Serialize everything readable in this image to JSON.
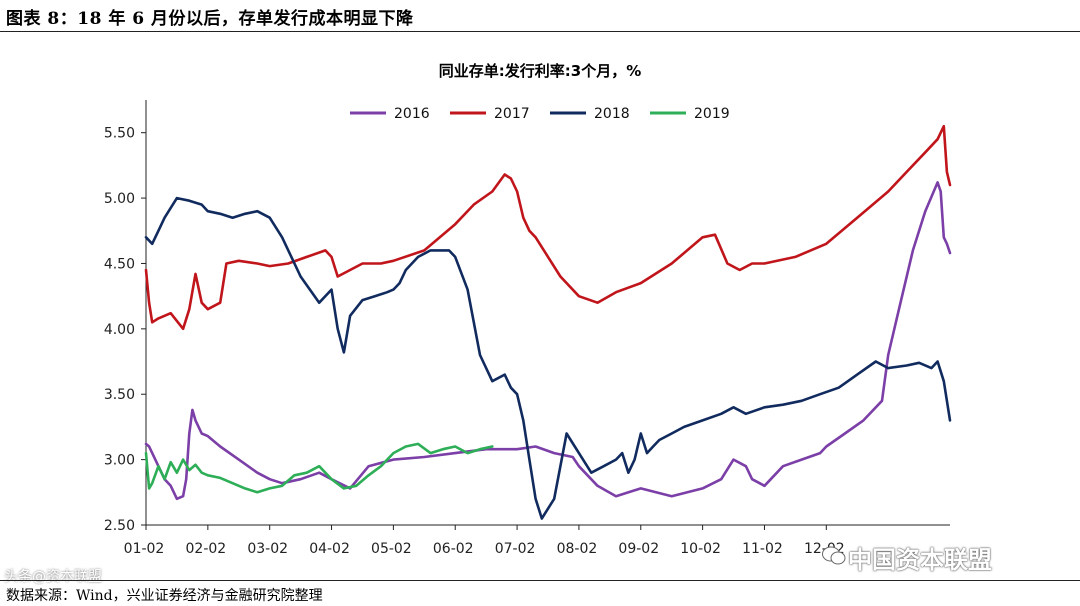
{
  "figure_title": "图表 8：18 年 6 月份以后，存单发行成本明显下降",
  "source_note": "数据来源：Wind，兴业证券经济与金融研究院整理",
  "watermark": "中国资本联盟",
  "watermark_left": "头条@资本联盟",
  "chart_data": {
    "type": "line",
    "title": "同业存单:发行利率:3个月，%",
    "xlabel": "",
    "ylabel": "",
    "ylim": [
      2.5,
      5.75
    ],
    "yticks": [
      "2.50",
      "3.00",
      "3.50",
      "4.00",
      "4.50",
      "5.00",
      "5.50"
    ],
    "x_tick_labels": [
      "01-02",
      "02-02",
      "03-02",
      "04-02",
      "05-02",
      "06-02",
      "07-02",
      "08-02",
      "09-02",
      "10-02",
      "11-02",
      "12-02"
    ],
    "legend_position": "top",
    "series": [
      {
        "name": "2016",
        "color": "#7B3FA7",
        "x": [
          0,
          0.05,
          0.1,
          0.15,
          0.2,
          0.3,
          0.4,
          0.5,
          0.6,
          0.65,
          0.7,
          0.75,
          0.8,
          0.9,
          1.0,
          1.2,
          1.5,
          1.8,
          2.0,
          2.2,
          2.5,
          2.8,
          3.0,
          3.3,
          3.6,
          4.0,
          4.5,
          5.0,
          5.5,
          6.0,
          6.3,
          6.6,
          6.9,
          7.0,
          7.3,
          7.6,
          8.0,
          8.5,
          9.0,
          9.3,
          9.5,
          9.7,
          9.8,
          10.0,
          10.3,
          10.6,
          10.9,
          11.0,
          11.3,
          11.6,
          11.9,
          12.0,
          12.2,
          12.4,
          12.6,
          12.8,
          12.85,
          12.9,
          12.95,
          13.0
        ],
        "y": [
          3.12,
          3.1,
          3.05,
          3.0,
          2.95,
          2.85,
          2.8,
          2.7,
          2.72,
          2.85,
          3.2,
          3.38,
          3.3,
          3.2,
          3.18,
          3.1,
          3.0,
          2.9,
          2.85,
          2.82,
          2.85,
          2.9,
          2.85,
          2.78,
          2.95,
          3.0,
          3.02,
          3.05,
          3.08,
          3.08,
          3.1,
          3.05,
          3.02,
          2.95,
          2.8,
          2.72,
          2.78,
          2.72,
          2.78,
          2.85,
          3.0,
          2.95,
          2.85,
          2.8,
          2.95,
          3.0,
          3.05,
          3.1,
          3.2,
          3.3,
          3.45,
          3.8,
          4.2,
          4.6,
          4.9,
          5.12,
          5.05,
          4.7,
          4.65,
          4.58
        ]
      },
      {
        "name": "2017",
        "color": "#C0151B",
        "x": [
          0,
          0.05,
          0.1,
          0.2,
          0.4,
          0.6,
          0.7,
          0.8,
          0.9,
          1.0,
          1.2,
          1.3,
          1.5,
          1.8,
          2.0,
          2.3,
          2.6,
          2.9,
          3.0,
          3.1,
          3.3,
          3.5,
          3.8,
          4.0,
          4.5,
          5.0,
          5.3,
          5.6,
          5.8,
          5.9,
          6.0,
          6.1,
          6.2,
          6.3,
          6.5,
          6.7,
          7.0,
          7.3,
          7.6,
          8.0,
          8.5,
          9.0,
          9.2,
          9.4,
          9.6,
          9.8,
          10.0,
          10.5,
          11.0,
          11.5,
          12.0,
          12.3,
          12.6,
          12.8,
          12.9,
          12.95,
          13.0
        ],
        "y": [
          4.45,
          4.2,
          4.05,
          4.08,
          4.12,
          4.0,
          4.15,
          4.42,
          4.2,
          4.15,
          4.2,
          4.5,
          4.52,
          4.5,
          4.48,
          4.5,
          4.55,
          4.6,
          4.55,
          4.4,
          4.45,
          4.5,
          4.5,
          4.52,
          4.6,
          4.8,
          4.95,
          5.05,
          5.18,
          5.15,
          5.05,
          4.85,
          4.75,
          4.7,
          4.55,
          4.4,
          4.25,
          4.2,
          4.28,
          4.35,
          4.5,
          4.7,
          4.72,
          4.5,
          4.45,
          4.5,
          4.5,
          4.55,
          4.65,
          4.85,
          5.05,
          5.2,
          5.35,
          5.45,
          5.55,
          5.2,
          5.1
        ]
      },
      {
        "name": "2018",
        "color": "#112B5F",
        "x": [
          0,
          0.1,
          0.2,
          0.3,
          0.5,
          0.7,
          0.9,
          1.0,
          1.2,
          1.4,
          1.6,
          1.8,
          2.0,
          2.2,
          2.5,
          2.8,
          3.0,
          3.1,
          3.2,
          3.3,
          3.5,
          3.7,
          3.9,
          4.0,
          4.1,
          4.2,
          4.4,
          4.6,
          4.9,
          5.0,
          5.2,
          5.4,
          5.6,
          5.8,
          5.9,
          6.0,
          6.1,
          6.2,
          6.3,
          6.4,
          6.6,
          6.8,
          7.0,
          7.2,
          7.4,
          7.6,
          7.7,
          7.8,
          7.9,
          8.0,
          8.1,
          8.2,
          8.3,
          8.5,
          8.7,
          9.0,
          9.3,
          9.5,
          9.7,
          10.0,
          10.3,
          10.6,
          10.9,
          11.2,
          11.5,
          11.8,
          12.0,
          12.3,
          12.5,
          12.7,
          12.8,
          12.9,
          13.0
        ],
        "y": [
          4.7,
          4.65,
          4.75,
          4.85,
          5.0,
          4.98,
          4.95,
          4.9,
          4.88,
          4.85,
          4.88,
          4.9,
          4.85,
          4.7,
          4.4,
          4.2,
          4.3,
          4.0,
          3.82,
          4.1,
          4.22,
          4.25,
          4.28,
          4.3,
          4.35,
          4.45,
          4.55,
          4.6,
          4.6,
          4.55,
          4.3,
          3.8,
          3.6,
          3.65,
          3.55,
          3.5,
          3.3,
          3.0,
          2.7,
          2.55,
          2.7,
          3.2,
          3.05,
          2.9,
          2.95,
          3.0,
          3.05,
          2.9,
          3.0,
          3.2,
          3.05,
          3.1,
          3.15,
          3.2,
          3.25,
          3.3,
          3.35,
          3.4,
          3.35,
          3.4,
          3.42,
          3.45,
          3.5,
          3.55,
          3.65,
          3.75,
          3.7,
          3.72,
          3.74,
          3.7,
          3.75,
          3.6,
          3.3
        ]
      },
      {
        "name": "2019",
        "color": "#2DAE57",
        "x": [
          0,
          0.05,
          0.1,
          0.2,
          0.3,
          0.4,
          0.5,
          0.6,
          0.7,
          0.8,
          0.9,
          1.0,
          1.2,
          1.4,
          1.6,
          1.8,
          2.0,
          2.2,
          2.4,
          2.6,
          2.8,
          3.0,
          3.2,
          3.4,
          3.6,
          3.8,
          4.0,
          4.2,
          4.4,
          4.6,
          4.8,
          5.0,
          5.2,
          5.4,
          5.6
        ],
        "y": [
          3.05,
          2.78,
          2.82,
          2.95,
          2.85,
          2.98,
          2.9,
          3.0,
          2.92,
          2.96,
          2.9,
          2.88,
          2.86,
          2.82,
          2.78,
          2.75,
          2.78,
          2.8,
          2.88,
          2.9,
          2.95,
          2.85,
          2.78,
          2.8,
          2.88,
          2.95,
          3.05,
          3.1,
          3.12,
          3.05,
          3.08,
          3.1,
          3.05,
          3.08,
          3.1
        ]
      }
    ]
  }
}
